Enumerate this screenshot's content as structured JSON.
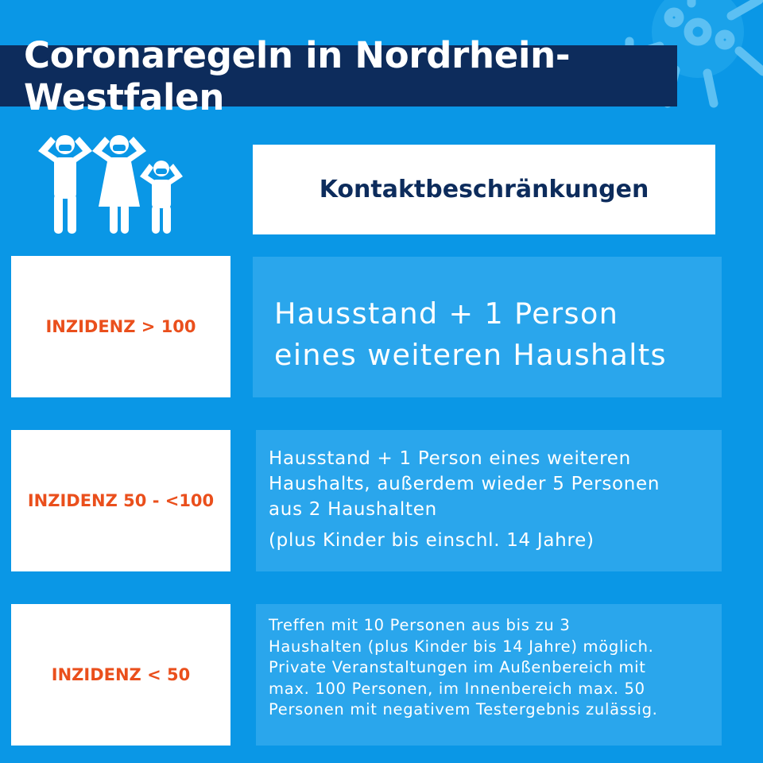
{
  "title": "Coronaregeln in Nordrhein-Westfalen",
  "header": "Kontaktbeschränkungen",
  "rows": [
    {
      "incidence": "INZIDENZ > 100",
      "rule_lines": [
        "Hausstand + 1 Person",
        "eines weiteren Haushalts"
      ]
    },
    {
      "incidence": "INZIDENZ 50 - <100",
      "rule_lines": [
        "Hausstand + 1 Person eines weiteren",
        "Haushalts, außerdem wieder 5 Personen",
        "aus 2 Haushalten"
      ],
      "note": "(plus Kinder bis einschl. 14 Jahre)"
    },
    {
      "incidence": "INZIDENZ < 50",
      "rule_lines": [
        "Treffen mit 10 Personen aus bis zu 3",
        "Haushalten (plus Kinder bis 14 Jahre) möglich.",
        "Private Veranstaltungen im Außenbereich mit",
        "max. 100 Personen, im Innenbereich max. 50",
        "Personen mit negativem Testergebnis zulässig."
      ]
    }
  ],
  "colors": {
    "background": "#0a97e6",
    "title_bar": "#0d2c5c",
    "incidence_text": "#ea4f1c",
    "rule_box": "#2aa6ec"
  },
  "icons": [
    "virus-icon",
    "masked-family-icon"
  ]
}
